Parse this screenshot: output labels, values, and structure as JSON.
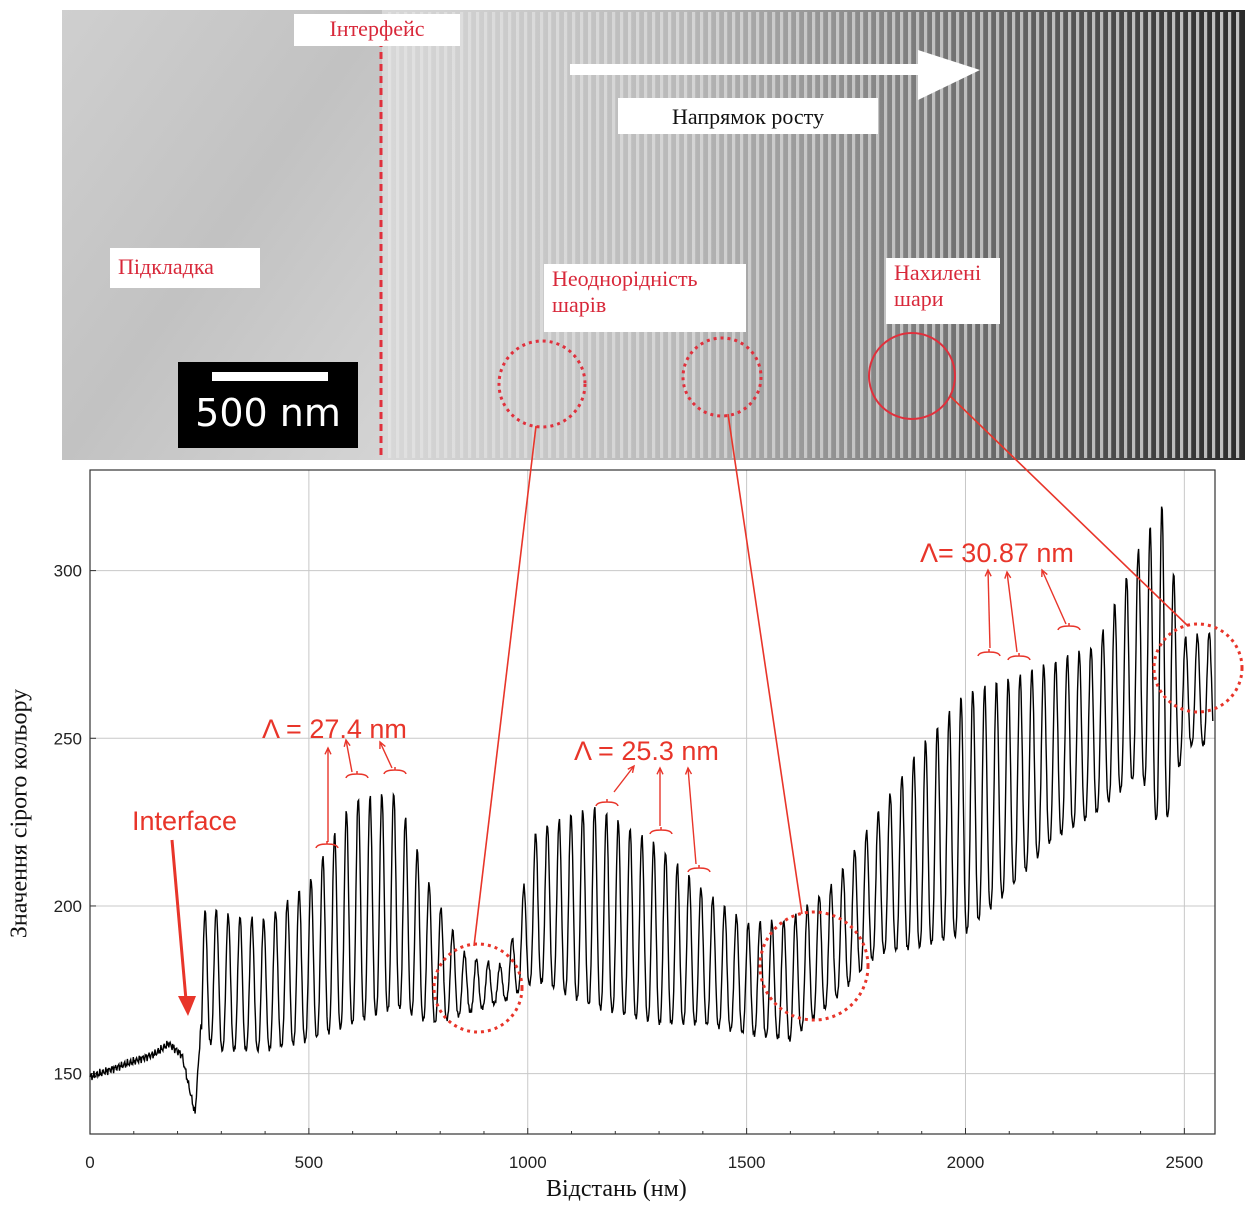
{
  "tem": {
    "substrate_label": "Підкладка",
    "interface_label": "Інтерфейс",
    "growth_label": "Напрямок росту",
    "inhomogeneity_label": "Неоднорідність шарів",
    "tilted_label": "Нахилені шари",
    "scale_bar": "500 nm",
    "colors": {
      "annotation": "#d8283a",
      "scale_bar_bg": "#000000"
    }
  },
  "chart_data": {
    "type": "line",
    "xlabel": "Відстань (нм)",
    "ylabel": "Значення сірого кольору",
    "xlim": [
      0,
      2570
    ],
    "ylim": [
      132,
      330
    ],
    "xticks": [
      0,
      500,
      1000,
      1500,
      2000,
      2500
    ],
    "yticks": [
      150,
      200,
      250,
      300
    ],
    "grid": true,
    "line_color": "#000000",
    "annotation_color": "#e8352a",
    "envelope": {
      "x": [
        0,
        150,
        180,
        210,
        240,
        255,
        270,
        290,
        400,
        500,
        600,
        700,
        780,
        860,
        950,
        1020,
        1150,
        1300,
        1400,
        1500,
        1600,
        1700,
        1800,
        1900,
        2000,
        2100,
        2200,
        2300,
        2400,
        2450,
        2500,
        2565
      ],
      "upper": [
        150,
        157,
        160,
        161,
        142,
        185,
        213,
        198,
        196,
        207,
        232,
        234,
        205,
        185,
        182,
        223,
        230,
        218,
        205,
        195,
        196,
        207,
        228,
        248,
        264,
        268,
        273,
        278,
        308,
        320,
        280,
        282
      ],
      "lower": [
        148,
        155,
        158,
        150,
        134,
        150,
        160,
        157,
        157,
        160,
        165,
        170,
        165,
        168,
        172,
        178,
        170,
        165,
        165,
        162,
        160,
        172,
        186,
        188,
        192,
        205,
        220,
        228,
        240,
        220,
        248,
        248
      ]
    },
    "annotations": [
      {
        "text": "Interface",
        "at": [
          240,
          165
        ]
      },
      {
        "text": "Λ = 27.4 nm",
        "at": [
          620,
          248
        ]
      },
      {
        "text": "Λ = 25.3 nm",
        "at": [
          1290,
          243
        ]
      },
      {
        "text": "Λ= 30.87 nm",
        "at": [
          2150,
          296
        ]
      }
    ]
  }
}
